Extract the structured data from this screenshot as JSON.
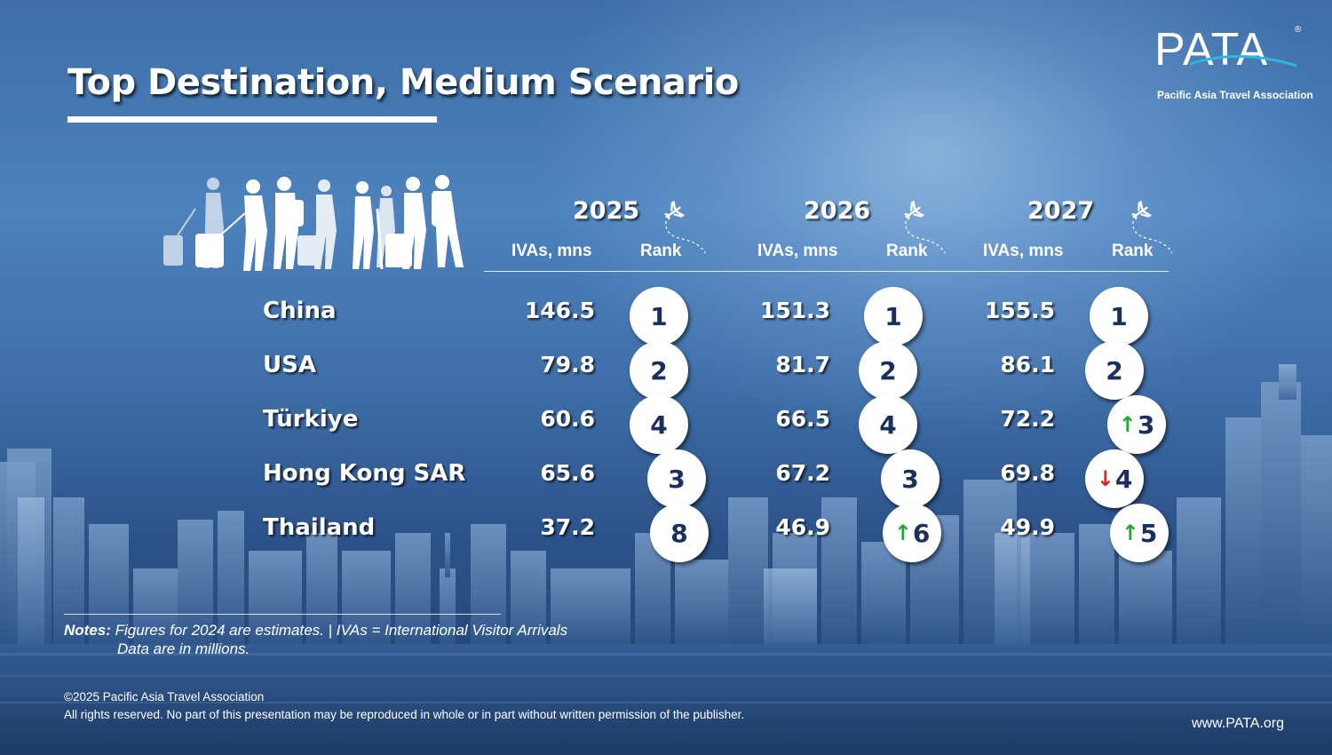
{
  "title": "Top Destination, Medium Scenario",
  "logo": {
    "wordmark": "PATA",
    "registered": "®",
    "tagline": "Pacific Asia Travel Association"
  },
  "colors": {
    "badge_text": "#1a2f5c",
    "up_arrow": "#1fa83a",
    "down_arrow": "#d8262a"
  },
  "icons": [
    "travelers-silhouette-icon",
    "airplane-icon",
    "arrow-up-icon",
    "arrow-down-icon"
  ],
  "chart_data": {
    "type": "table",
    "title": "Top Destination, Medium Scenario",
    "columns": [
      {
        "year": "2025",
        "value_label": "IVAs, mns",
        "rank_label": "Rank"
      },
      {
        "year": "2026",
        "value_label": "IVAs, mns",
        "rank_label": "Rank"
      },
      {
        "year": "2027",
        "value_label": "IVAs, mns",
        "rank_label": "Rank"
      }
    ],
    "rows": [
      {
        "country": "China",
        "values": [
          "146.5",
          "151.3",
          "155.5"
        ],
        "ranks": [
          "1",
          "1",
          "1"
        ],
        "trend": [
          "",
          "",
          ""
        ]
      },
      {
        "country": "USA",
        "values": [
          "79.8",
          "81.7",
          "86.1"
        ],
        "ranks": [
          "2",
          "2",
          "2"
        ],
        "trend": [
          "",
          "",
          ""
        ]
      },
      {
        "country": "Türkiye",
        "values": [
          "60.6",
          "66.5",
          "72.2"
        ],
        "ranks": [
          "4",
          "4",
          "3"
        ],
        "trend": [
          "",
          "",
          "up"
        ]
      },
      {
        "country": "Hong Kong SAR",
        "values": [
          "65.6",
          "67.2",
          "69.8"
        ],
        "ranks": [
          "3",
          "3",
          "4"
        ],
        "trend": [
          "",
          "",
          "down"
        ]
      },
      {
        "country": "Thailand",
        "values": [
          "37.2",
          "46.9",
          "49.9"
        ],
        "ranks": [
          "8",
          "6",
          "5"
        ],
        "trend": [
          "",
          "up",
          "up"
        ]
      }
    ]
  },
  "notes": {
    "label": "Notes:",
    "line1": " Figures for 2024 are estimates. | IVAs = International Visitor Arrivals",
    "line2": "Data are in millions."
  },
  "footer": {
    "copyright": "©2025 Pacific Asia Travel Association",
    "rights": "All rights reserved. No part of this presentation may be reproduced in whole or in part without written permission of the publisher.",
    "website": "www.PATA.org"
  }
}
